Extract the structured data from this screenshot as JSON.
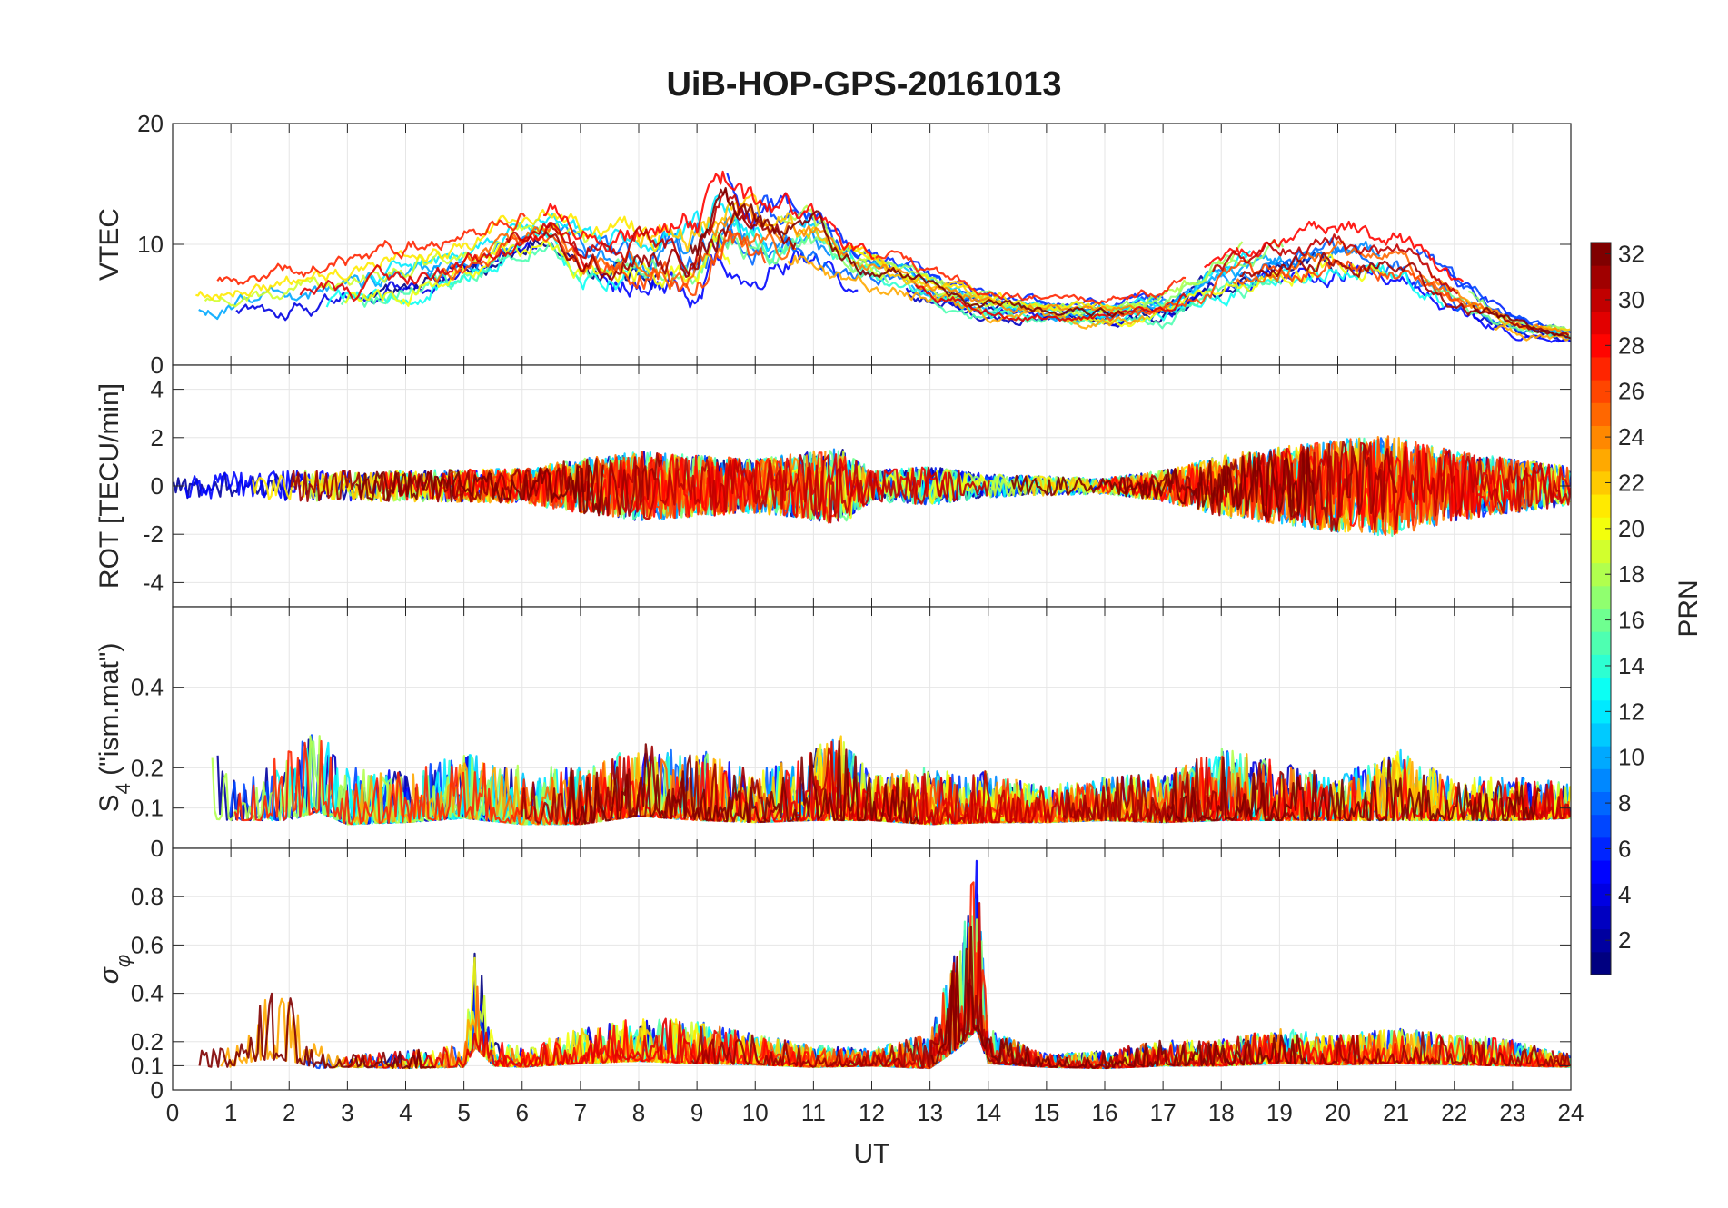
{
  "chart_data": {
    "title": "UiB-HOP-GPS-20161013",
    "type": "line",
    "xlabel": "UT",
    "xlim": [
      0,
      24
    ],
    "x_ticks": [
      "0",
      "1",
      "2",
      "3",
      "4",
      "5",
      "6",
      "7",
      "8",
      "9",
      "10",
      "11",
      "12",
      "13",
      "14",
      "15",
      "16",
      "17",
      "18",
      "19",
      "20",
      "21",
      "22",
      "23",
      "24"
    ],
    "grid": true,
    "panels": [
      {
        "id": "vtec",
        "ylabel": "VTEC",
        "ylim": [
          0,
          20
        ],
        "y_ticks": [
          {
            "v": 0,
            "label": "0"
          },
          {
            "v": 10,
            "label": "10"
          },
          {
            "v": 20,
            "label": "20"
          }
        ],
        "approx_envelope": {
          "x": [
            0,
            1,
            2,
            3,
            4,
            5,
            6,
            6.5,
            7,
            8,
            9,
            9.5,
            10,
            11,
            11.5,
            12,
            13,
            14,
            15,
            16,
            17,
            18,
            19,
            20,
            21,
            22,
            23,
            24
          ],
          "mean": [
            5,
            5.5,
            6,
            7,
            8,
            9,
            11,
            12,
            10,
            10,
            10,
            13,
            11,
            11,
            9,
            8,
            6.5,
            5,
            4.5,
            4.5,
            5,
            8,
            9,
            10,
            9.5,
            6,
            3.5,
            2.5
          ],
          "spread": [
            2,
            2.5,
            3,
            3,
            3.5,
            3,
            3,
            3,
            4,
            5,
            6,
            6,
            5,
            4,
            3,
            2.5,
            2,
            2,
            1.5,
            1.5,
            2,
            3,
            3,
            3.5,
            3.5,
            2.5,
            1.5,
            1
          ]
        }
      },
      {
        "id": "rot",
        "ylabel": "ROT [TECU/min]",
        "ylim": [
          -5,
          5
        ],
        "y_ticks": [
          {
            "v": -4,
            "label": "-4"
          },
          {
            "v": -2,
            "label": "-2"
          },
          {
            "v": 0,
            "label": "0"
          },
          {
            "v": 2,
            "label": "2"
          },
          {
            "v": 4,
            "label": "4"
          }
        ],
        "approx_envelope": {
          "x": [
            0,
            2,
            4,
            6,
            7,
            8,
            9,
            10,
            11,
            11.5,
            12,
            13,
            14,
            15,
            16,
            17,
            18,
            19,
            20,
            21,
            22,
            23,
            24
          ],
          "mean": [
            0,
            0,
            0,
            0,
            0,
            0,
            0,
            0,
            0,
            0,
            0,
            0,
            0,
            0,
            0,
            0,
            0,
            0,
            0,
            0,
            0,
            0,
            0
          ],
          "spread": [
            0.6,
            0.8,
            0.8,
            0.9,
            1.4,
            1.8,
            1.6,
            1.4,
            1.8,
            2,
            0.8,
            1,
            0.6,
            0.5,
            0.4,
            0.8,
            1.6,
            2,
            2.4,
            2.6,
            1.8,
            1.4,
            1
          ]
        }
      },
      {
        "id": "s4",
        "ylabel": "S",
        "ylabel_sub": "4",
        "ylabel_rest": "(\"ism.mat\")",
        "ylim": [
          0,
          0.6
        ],
        "y_ticks": [
          {
            "v": 0,
            "label": "0"
          },
          {
            "v": 0.1,
            "label": "0.1"
          },
          {
            "v": 0.2,
            "label": "0.2"
          },
          {
            "v": 0.4,
            "label": "0.4"
          }
        ],
        "approx_envelope": {
          "x": [
            0,
            0.5,
            1,
            2,
            2.5,
            3,
            4,
            5,
            6,
            7,
            8,
            9,
            10,
            11,
            11.5,
            12,
            13,
            14,
            15,
            16,
            17,
            18,
            19,
            20,
            21,
            22,
            23,
            24
          ],
          "mean": [
            0.1,
            0.15,
            0.1,
            0.12,
            0.15,
            0.1,
            0.1,
            0.12,
            0.1,
            0.1,
            0.13,
            0.12,
            0.1,
            0.12,
            0.13,
            0.1,
            0.1,
            0.1,
            0.09,
            0.1,
            0.1,
            0.12,
            0.11,
            0.1,
            0.12,
            0.1,
            0.1,
            0.1
          ],
          "spread": [
            0.06,
            0.15,
            0.06,
            0.1,
            0.12,
            0.08,
            0.07,
            0.09,
            0.08,
            0.08,
            0.1,
            0.1,
            0.07,
            0.1,
            0.12,
            0.06,
            0.08,
            0.07,
            0.05,
            0.06,
            0.07,
            0.1,
            0.08,
            0.06,
            0.1,
            0.06,
            0.06,
            0.05
          ]
        }
      },
      {
        "id": "sigphi",
        "ylabel": "σ",
        "ylabel_sub": "φ",
        "ylim": [
          0,
          1
        ],
        "y_ticks": [
          {
            "v": 0,
            "label": "0"
          },
          {
            "v": 0.1,
            "label": "0.1"
          },
          {
            "v": 0.2,
            "label": "0.2"
          },
          {
            "v": 0.4,
            "label": "0.4"
          },
          {
            "v": 0.6,
            "label": "0.6"
          },
          {
            "v": 0.8,
            "label": "0.8"
          }
        ],
        "approx_envelope": {
          "x": [
            0,
            1,
            1.5,
            2,
            2.5,
            3,
            4,
            5,
            5.2,
            5.5,
            6,
            7,
            8,
            9,
            10,
            11,
            12,
            13,
            13.5,
            13.8,
            14,
            15,
            16,
            17,
            18,
            19,
            20,
            21,
            22,
            23,
            24
          ],
          "mean": [
            0.11,
            0.12,
            0.2,
            0.22,
            0.12,
            0.11,
            0.11,
            0.12,
            0.3,
            0.13,
            0.12,
            0.15,
            0.17,
            0.16,
            0.14,
            0.12,
            0.12,
            0.13,
            0.3,
            0.45,
            0.15,
            0.11,
            0.11,
            0.13,
            0.13,
            0.15,
            0.14,
            0.15,
            0.14,
            0.13,
            0.11
          ],
          "spread": [
            0.03,
            0.05,
            0.15,
            0.2,
            0.06,
            0.03,
            0.04,
            0.05,
            0.25,
            0.06,
            0.05,
            0.08,
            0.1,
            0.1,
            0.07,
            0.05,
            0.04,
            0.08,
            0.25,
            0.4,
            0.08,
            0.03,
            0.04,
            0.06,
            0.06,
            0.08,
            0.07,
            0.08,
            0.07,
            0.06,
            0.03
          ]
        }
      }
    ],
    "colorbar": {
      "label": "PRN",
      "range": [
        1,
        32
      ],
      "ticks": [
        "2",
        "4",
        "6",
        "8",
        "10",
        "12",
        "14",
        "16",
        "18",
        "20",
        "22",
        "24",
        "26",
        "28",
        "30",
        "32"
      ],
      "colormap": "jet",
      "placement": "right"
    },
    "series_count": 32,
    "series_ids": [
      1,
      2,
      3,
      4,
      5,
      6,
      7,
      8,
      9,
      10,
      11,
      12,
      13,
      14,
      15,
      16,
      17,
      18,
      19,
      20,
      21,
      22,
      23,
      24,
      25,
      26,
      27,
      28,
      29,
      30,
      31,
      32
    ]
  },
  "colors": {
    "grid": "#e6e6e6",
    "axes": "#262626",
    "text": "#262626",
    "jet": [
      "#00008f",
      "#0000ff",
      "#007fff",
      "#00ffff",
      "#7fff7f",
      "#ffff00",
      "#ff7f00",
      "#ff0000",
      "#7f0000"
    ]
  }
}
